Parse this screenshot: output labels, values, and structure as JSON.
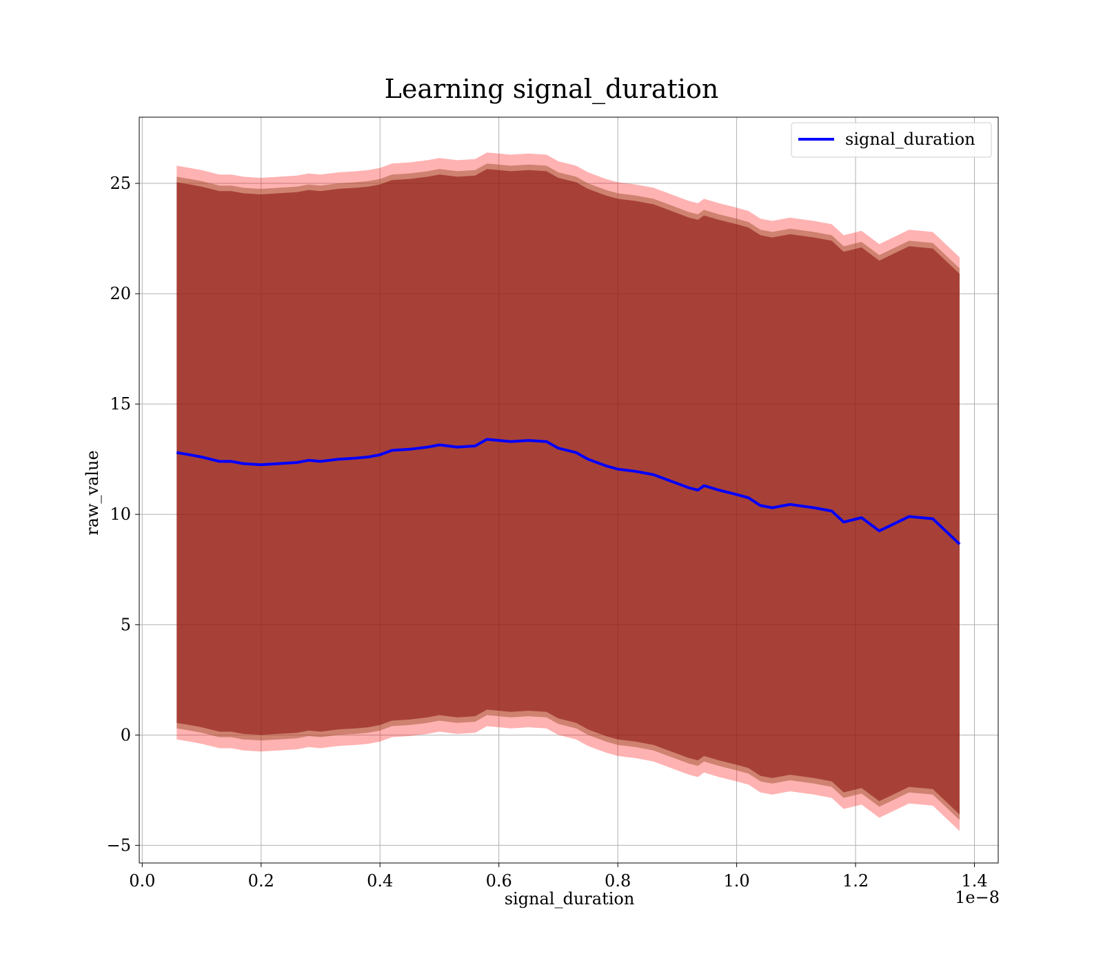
{
  "chart_data": {
    "type": "line",
    "title": "Learning signal_duration",
    "xlabel": "signal_duration",
    "ylabel": "raw_value",
    "x_offset_label": "1e−8",
    "xlim": [
      -0.005,
      1.44
    ],
    "ylim": [
      -5.8,
      28
    ],
    "xticks": [
      0.0,
      0.2,
      0.4,
      0.6,
      0.8,
      1.0,
      1.2,
      1.4
    ],
    "xtick_labels": [
      "0.0",
      "0.2",
      "0.4",
      "0.6",
      "0.8",
      "1.0",
      "1.2",
      "1.4"
    ],
    "yticks": [
      -5,
      0,
      5,
      10,
      15,
      20,
      25
    ],
    "ytick_labels": [
      "−5",
      "0",
      "5",
      "10",
      "15",
      "20",
      "25"
    ],
    "grid": true,
    "legend": {
      "position": "top-right",
      "entries": [
        "signal_duration"
      ]
    },
    "colors": {
      "line": "#0000ff",
      "outer_band": "#ff000040",
      "middle_band": "#a0522d",
      "inner_band": "#800000"
    },
    "series": [
      {
        "name": "signal_duration",
        "x": [
          0.058,
          0.08,
          0.1,
          0.13,
          0.15,
          0.17,
          0.2,
          0.23,
          0.26,
          0.28,
          0.3,
          0.33,
          0.36,
          0.38,
          0.4,
          0.42,
          0.45,
          0.48,
          0.5,
          0.53,
          0.56,
          0.58,
          0.6,
          0.62,
          0.65,
          0.68,
          0.7,
          0.73,
          0.75,
          0.78,
          0.8,
          0.83,
          0.86,
          0.88,
          0.9,
          0.92,
          0.935,
          0.945,
          0.97,
          1.0,
          1.02,
          1.04,
          1.06,
          1.09,
          1.13,
          1.16,
          1.18,
          1.21,
          1.24,
          1.29,
          1.33,
          1.375
        ],
        "y": [
          12.8,
          12.7,
          12.6,
          12.4,
          12.4,
          12.3,
          12.25,
          12.3,
          12.35,
          12.45,
          12.4,
          12.5,
          12.55,
          12.6,
          12.7,
          12.9,
          12.95,
          13.05,
          13.15,
          13.05,
          13.1,
          13.4,
          13.35,
          13.3,
          13.35,
          13.3,
          13.0,
          12.8,
          12.5,
          12.2,
          12.05,
          11.95,
          11.8,
          11.6,
          11.4,
          11.2,
          11.1,
          11.3,
          11.1,
          10.9,
          10.75,
          10.4,
          10.3,
          10.45,
          10.3,
          10.15,
          9.65,
          9.85,
          9.25,
          9.9,
          9.8,
          8.65
        ]
      }
    ],
    "bands": [
      {
        "name": "outer",
        "offset": 13.0
      },
      {
        "name": "middle",
        "offset": 12.5
      },
      {
        "name": "inner",
        "offset": 12.25
      }
    ]
  }
}
